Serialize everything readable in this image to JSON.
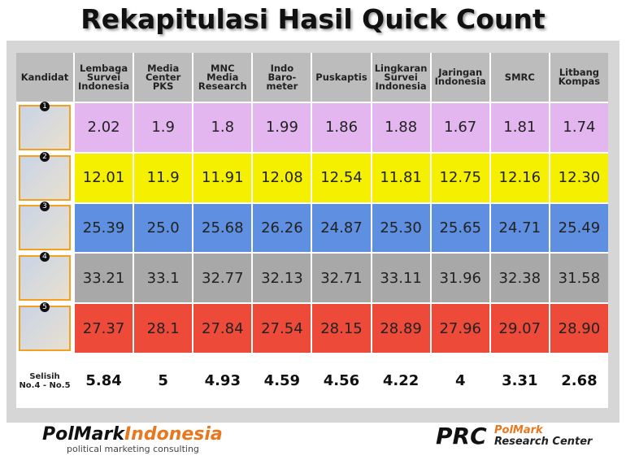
{
  "title": "Rekapitulasi Hasil Quick Count",
  "table": {
    "header": [
      "Kandidat",
      "Lembaga\nSurvei\nIndonesia",
      "Media\nCenter\nPKS",
      "MNC\nMedia\nResearch",
      "Indo\nBaro-\nmeter",
      "Puskaptis",
      "Lingkaran\nSurvei\nIndonesia",
      "Jaringan\nIndonesia",
      "SMRC",
      "Litbang\nKompas"
    ],
    "rows": [
      {
        "number": "1",
        "values": [
          "2.02",
          "1.9",
          "1.8",
          "1.99",
          "1.86",
          "1.88",
          "1.67",
          "1.81",
          "1.74"
        ]
      },
      {
        "number": "2",
        "values": [
          "12.01",
          "11.9",
          "11.91",
          "12.08",
          "12.54",
          "11.81",
          "12.75",
          "12.16",
          "12.30"
        ]
      },
      {
        "number": "3",
        "values": [
          "25.39",
          "25.0",
          "25.68",
          "26.26",
          "24.87",
          "25.30",
          "25.65",
          "24.71",
          "25.49"
        ]
      },
      {
        "number": "4",
        "values": [
          "33.21",
          "33.1",
          "32.77",
          "32.13",
          "32.71",
          "33.11",
          "31.96",
          "32.38",
          "31.58"
        ]
      },
      {
        "number": "5",
        "values": [
          "27.37",
          "28.1",
          "27.84",
          "27.54",
          "28.15",
          "28.89",
          "27.96",
          "29.07",
          "28.90"
        ]
      }
    ],
    "difference": {
      "label": "Selisih\nNo.4 - No.5",
      "values": [
        "5.84",
        "5",
        "4.93",
        "4.59",
        "4.56",
        "4.22",
        "4",
        "3.31",
        "2.68"
      ]
    }
  },
  "footer": {
    "left": {
      "brand": "PolMark",
      "brand2": "Indonesia",
      "tagline": "political marketing consulting"
    },
    "right": {
      "mark": "PRC",
      "brand": "PolMark",
      "tagline": "Research Center"
    }
  }
}
